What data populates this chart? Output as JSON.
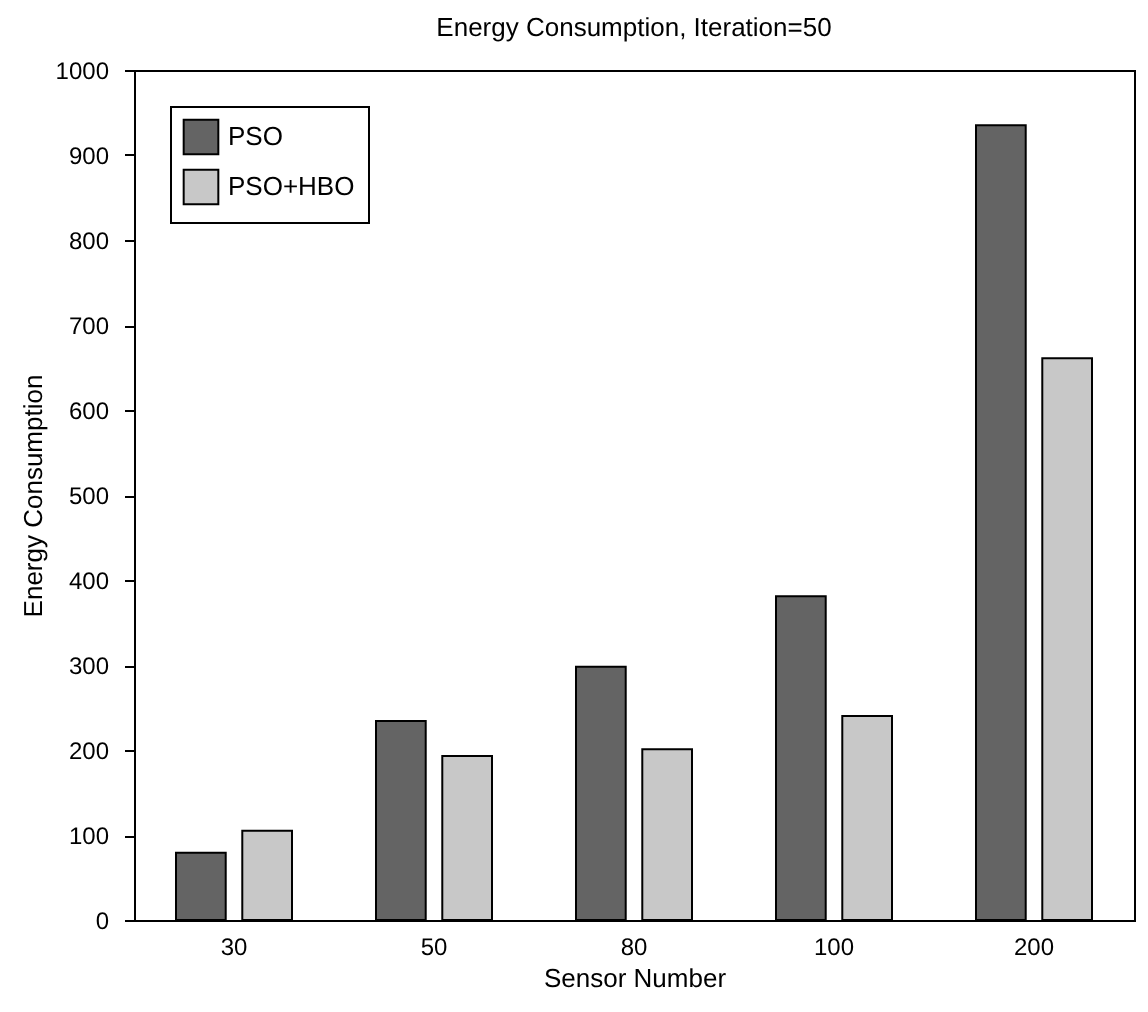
{
  "chart_data": {
    "type": "bar",
    "title": "Energy Consumption, Iteration=50",
    "xlabel": "Sensor Number",
    "ylabel": "Energy Consumption",
    "categories": [
      "30",
      "50",
      "80",
      "100",
      "200"
    ],
    "series": [
      {
        "name": "PSO",
        "color": "#646464",
        "values": [
          79,
          234,
          298,
          381,
          935
        ]
      },
      {
        "name": "PSO+HBO",
        "color": "#c8c8c8",
        "values": [
          105,
          193,
          201,
          240,
          661
        ]
      }
    ],
    "ylim": [
      0,
      1000
    ],
    "yticks": [
      0,
      100,
      200,
      300,
      400,
      500,
      600,
      700,
      800,
      900,
      1000
    ],
    "legend": "top left"
  }
}
